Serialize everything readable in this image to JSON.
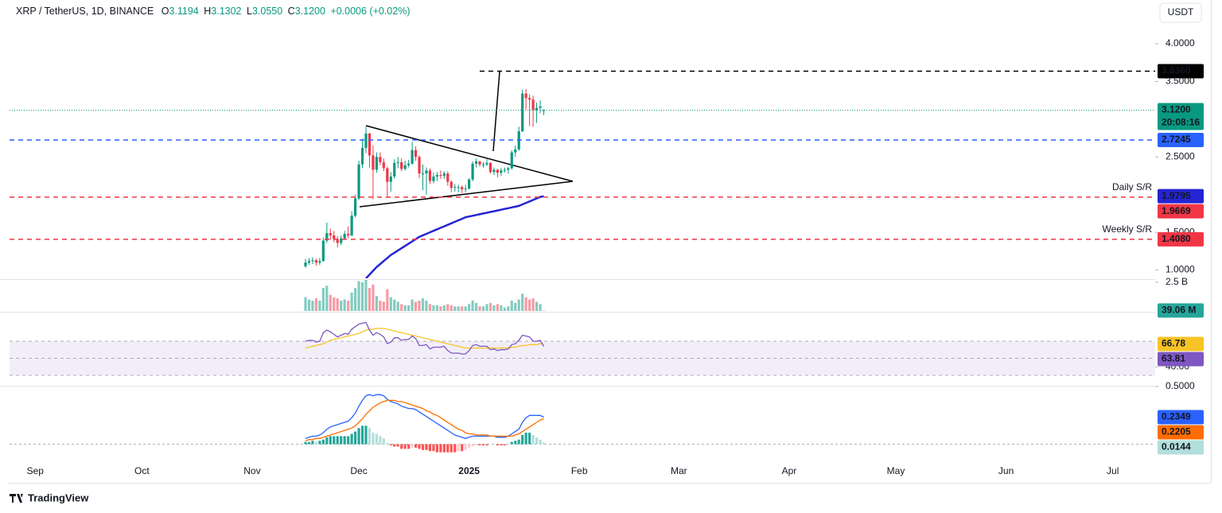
{
  "header": {
    "symbol": "XRP / TetherUS, 1D, BINANCE",
    "ohlc": [
      {
        "label": "O",
        "value": "3.1194"
      },
      {
        "label": "H",
        "value": "3.1302"
      },
      {
        "label": "L",
        "value": "3.0550"
      },
      {
        "label": "C",
        "value": "3.1200"
      }
    ],
    "change": "+0.0006 (+0.02%)"
  },
  "chart_data": [
    {
      "type": "candlestick",
      "currency": "USDT",
      "up_color": "#089981",
      "down_color": "#f23645",
      "months": [
        "Sep",
        "Oct",
        "Nov",
        "Dec",
        "2025",
        "Feb",
        "Mar",
        "Apr",
        "May",
        "Jun",
        "Jul"
      ],
      "ylim": [
        0.89,
        4.58
      ],
      "yticks": [
        {
          "value": 1,
          "label": "1.0000"
        },
        {
          "value": 1.5,
          "label": "1.5000"
        },
        {
          "value": 2.5,
          "label": "2.5000"
        },
        {
          "value": 3.5,
          "label": "3.5000"
        },
        {
          "value": 4,
          "label": "4.0000"
        }
      ],
      "ohlc": [
        [
          1.05,
          1.15,
          1.03,
          1.1
        ],
        [
          1.1,
          1.16,
          1.07,
          1.12
        ],
        [
          1.12,
          1.17,
          1.08,
          1.13
        ],
        [
          1.13,
          1.15,
          1.06,
          1.1
        ],
        [
          1.1,
          1.16,
          1.07,
          1.12
        ],
        [
          1.12,
          1.43,
          1.11,
          1.39
        ],
        [
          1.39,
          1.63,
          1.36,
          1.49
        ],
        [
          1.49,
          1.55,
          1.4,
          1.46
        ],
        [
          1.46,
          1.52,
          1.37,
          1.41
        ],
        [
          1.41,
          1.45,
          1.3,
          1.36
        ],
        [
          1.36,
          1.46,
          1.33,
          1.42
        ],
        [
          1.42,
          1.52,
          1.4,
          1.48
        ],
        [
          1.48,
          1.58,
          1.42,
          1.46
        ],
        [
          1.46,
          1.78,
          1.45,
          1.72
        ],
        [
          1.72,
          2.0,
          1.7,
          1.95
        ],
        [
          1.95,
          2.45,
          1.93,
          2.4
        ],
        [
          2.4,
          2.74,
          2.35,
          2.62
        ],
        [
          2.62,
          2.9,
          2.55,
          2.81
        ],
        [
          2.81,
          2.82,
          2.36,
          2.52
        ],
        [
          2.52,
          2.65,
          1.94,
          2.33
        ],
        [
          2.33,
          2.56,
          2.29,
          2.5
        ],
        [
          2.5,
          2.56,
          2.39,
          2.43
        ],
        [
          2.43,
          2.48,
          2.31,
          2.35
        ],
        [
          2.35,
          2.37,
          1.96,
          2.17
        ],
        [
          2.17,
          2.3,
          2.04,
          2.24
        ],
        [
          2.24,
          2.47,
          2.21,
          2.42
        ],
        [
          2.42,
          2.5,
          2.35,
          2.43
        ],
        [
          2.43,
          2.48,
          2.31,
          2.34
        ],
        [
          2.34,
          2.45,
          2.32,
          2.39
        ],
        [
          2.39,
          2.46,
          2.36,
          2.41
        ],
        [
          2.41,
          2.7,
          2.4,
          2.59
        ],
        [
          2.59,
          2.64,
          2.45,
          2.5
        ],
        [
          2.5,
          2.52,
          2.22,
          2.28
        ],
        [
          2.28,
          2.4,
          2.06,
          2.28
        ],
        [
          2.28,
          2.36,
          2.0,
          2.32
        ],
        [
          2.32,
          2.35,
          2.14,
          2.18
        ],
        [
          2.18,
          2.29,
          2.15,
          2.24
        ],
        [
          2.24,
          2.3,
          2.18,
          2.26
        ],
        [
          2.26,
          2.32,
          2.21,
          2.25
        ],
        [
          2.25,
          2.31,
          2.21,
          2.28
        ],
        [
          2.28,
          2.31,
          2.12,
          2.17
        ],
        [
          2.17,
          2.19,
          2.03,
          2.09
        ],
        [
          2.09,
          2.14,
          2.04,
          2.1
        ],
        [
          2.1,
          2.13,
          2.03,
          2.1
        ],
        [
          2.1,
          2.12,
          2.02,
          2.07
        ],
        [
          2.07,
          2.13,
          2.03,
          2.08
        ],
        [
          2.08,
          2.22,
          2.07,
          2.2
        ],
        [
          2.2,
          2.44,
          2.18,
          2.41
        ],
        [
          2.41,
          2.48,
          2.36,
          2.44
        ],
        [
          2.44,
          2.45,
          2.37,
          2.4
        ],
        [
          2.4,
          2.43,
          2.36,
          2.4
        ],
        [
          2.4,
          2.47,
          2.38,
          2.42
        ],
        [
          2.42,
          2.43,
          2.28,
          2.3
        ],
        [
          2.3,
          2.36,
          2.26,
          2.33
        ],
        [
          2.33,
          2.34,
          2.23,
          2.29
        ],
        [
          2.29,
          2.35,
          2.25,
          2.32
        ],
        [
          2.32,
          2.36,
          2.29,
          2.33
        ],
        [
          2.33,
          2.37,
          2.28,
          2.35
        ],
        [
          2.35,
          2.59,
          2.33,
          2.56
        ],
        [
          2.56,
          2.65,
          2.5,
          2.6
        ],
        [
          2.6,
          2.9,
          2.58,
          2.84
        ],
        [
          2.84,
          3.39,
          2.83,
          3.34
        ],
        [
          3.34,
          3.4,
          3.13,
          3.28
        ],
        [
          3.28,
          3.33,
          2.91,
          3.26
        ],
        [
          3.26,
          3.31,
          2.9,
          3.12
        ],
        [
          3.12,
          3.22,
          2.95,
          3.15
        ],
        [
          3.15,
          3.25,
          3.08,
          3.17
        ],
        [
          3.1194,
          3.1302,
          3.055,
          3.12
        ]
      ],
      "ma": {
        "color": "#2424d4",
        "values": [
          null,
          null,
          null,
          null,
          null,
          null,
          null,
          null,
          null,
          null,
          null,
          null,
          null,
          null,
          null,
          null,
          null,
          0.89,
          0.94,
          0.99,
          1.04,
          1.08,
          1.12,
          1.16,
          1.2,
          1.23,
          1.26,
          1.29,
          1.32,
          1.35,
          1.38,
          1.41,
          1.44,
          1.46,
          1.48,
          1.5,
          1.52,
          1.54,
          1.56,
          1.58,
          1.6,
          1.62,
          1.64,
          1.66,
          1.68,
          1.7,
          1.71,
          1.72,
          1.73,
          1.74,
          1.75,
          1.76,
          1.77,
          1.78,
          1.79,
          1.8,
          1.81,
          1.82,
          1.83,
          1.84,
          1.85,
          1.87,
          1.89,
          1.91,
          1.93,
          1.95,
          1.97,
          1.9795
        ]
      },
      "last_price": {
        "value": 3.12,
        "label": "3.1200",
        "countdown": "20:08:16",
        "color": "#089981"
      },
      "levels": [
        {
          "value": 3.636,
          "label": "3.6360",
          "color": "#000000"
        },
        {
          "value": 2.7245,
          "label": "2.7245",
          "color": "#2962ff"
        },
        {
          "value": 1.9669,
          "label": "1.9669",
          "color": "#f23645",
          "name": "Daily S/R"
        },
        {
          "value": 1.408,
          "label": "1.4080",
          "color": "#f23645",
          "name": "Weekly S/R"
        }
      ]
    },
    {
      "type": "bar",
      "ylim": [
        0,
        2.7
      ],
      "yticks": [
        {
          "value": 2.5,
          "label": "2.5 B"
        }
      ],
      "last_label": "39.06 M",
      "color": "#26a69a",
      "values": [
        1.2,
        1.0,
        0.9,
        1.1,
        0.9,
        2.0,
        2.2,
        1.4,
        1.2,
        1.1,
        0.9,
        1.0,
        0.9,
        1.6,
        2.0,
        2.6,
        2.5,
        2.8,
        2.0,
        2.3,
        1.3,
        0.9,
        0.8,
        1.9,
        1.2,
        1.0,
        0.8,
        0.6,
        0.5,
        0.5,
        1.0,
        0.8,
        0.9,
        1.1,
        0.9,
        0.6,
        0.5,
        0.5,
        0.4,
        0.5,
        0.6,
        0.5,
        0.4,
        0.4,
        0.4,
        0.4,
        0.6,
        0.9,
        0.7,
        0.4,
        0.4,
        0.6,
        0.7,
        0.5,
        0.6,
        0.5,
        0.3,
        0.4,
        0.9,
        0.7,
        1.0,
        1.5,
        1.2,
        1.0,
        1.1,
        0.8,
        0.6,
        0.03906
      ]
    },
    {
      "type": "line",
      "ylim": [
        18.8,
        103.5
      ],
      "yticks": [
        {
          "value": 40,
          "label": "40.00"
        }
      ],
      "band": [
        30,
        70
      ],
      "midline": 50,
      "series": [
        {
          "color": "#7e57c2",
          "values": [
            70,
            71,
            71,
            69,
            70,
            80,
            83,
            81,
            78,
            75,
            77,
            79,
            78,
            84,
            87,
            90,
            91,
            92,
            83,
            77,
            80,
            78,
            75,
            67,
            69,
            74,
            74,
            71,
            72,
            72,
            76,
            73,
            65,
            65,
            66,
            61,
            63,
            63,
            63,
            64,
            59,
            56,
            56,
            56,
            55,
            55,
            59,
            65,
            66,
            64,
            64,
            64,
            60,
            61,
            59,
            60,
            60,
            61,
            66,
            67,
            71,
            77,
            76,
            75,
            70,
            70,
            71,
            63.81
          ]
        },
        {
          "color": "#f7c325",
          "values": [
            62,
            63,
            64,
            65,
            66,
            67,
            69,
            71,
            72,
            73,
            74,
            75,
            76,
            77,
            78,
            79,
            81,
            83,
            84,
            84,
            85,
            85,
            85,
            84,
            83,
            82,
            81,
            80,
            79,
            78,
            77,
            76,
            75,
            74,
            73,
            72,
            71,
            70,
            69,
            68,
            67,
            66,
            65,
            64,
            63,
            62,
            62,
            62,
            62,
            62,
            62,
            62,
            62,
            62,
            62,
            62,
            62,
            62,
            63,
            63,
            64,
            65,
            65,
            66,
            66,
            66,
            67,
            66.78
          ]
        }
      ]
    },
    {
      "type": "macd",
      "ylim": [
        -0.148,
        0.5
      ],
      "yticks": [
        {
          "value": 0.5,
          "label": "0.5000"
        }
      ],
      "macd": {
        "color": "#2962ff",
        "values": [
          0.05,
          0.06,
          0.07,
          0.07,
          0.08,
          0.1,
          0.13,
          0.15,
          0.16,
          0.17,
          0.18,
          0.19,
          0.2,
          0.23,
          0.27,
          0.33,
          0.38,
          0.42,
          0.43,
          0.42,
          0.43,
          0.43,
          0.42,
          0.39,
          0.37,
          0.36,
          0.35,
          0.33,
          0.32,
          0.31,
          0.31,
          0.3,
          0.28,
          0.26,
          0.24,
          0.22,
          0.2,
          0.18,
          0.16,
          0.14,
          0.12,
          0.1,
          0.08,
          0.07,
          0.06,
          0.05,
          0.06,
          0.07,
          0.07,
          0.07,
          0.07,
          0.07,
          0.07,
          0.07,
          0.06,
          0.06,
          0.06,
          0.07,
          0.09,
          0.11,
          0.13,
          0.19,
          0.23,
          0.25,
          0.25,
          0.25,
          0.25,
          0.2349
        ]
      },
      "signal": {
        "color": "#ff6d00",
        "values": [
          0.03,
          0.04,
          0.04,
          0.05,
          0.05,
          0.06,
          0.07,
          0.08,
          0.09,
          0.1,
          0.11,
          0.12,
          0.13,
          0.14,
          0.16,
          0.19,
          0.22,
          0.26,
          0.29,
          0.32,
          0.34,
          0.36,
          0.37,
          0.38,
          0.38,
          0.38,
          0.37,
          0.37,
          0.36,
          0.35,
          0.34,
          0.33,
          0.32,
          0.31,
          0.29,
          0.28,
          0.26,
          0.25,
          0.23,
          0.21,
          0.19,
          0.17,
          0.15,
          0.13,
          0.12,
          0.1,
          0.09,
          0.09,
          0.08,
          0.08,
          0.08,
          0.08,
          0.07,
          0.07,
          0.07,
          0.07,
          0.07,
          0.07,
          0.07,
          0.08,
          0.09,
          0.11,
          0.13,
          0.15,
          0.17,
          0.19,
          0.21,
          0.2205
        ]
      },
      "histogram": {
        "up_color": "#26a69a",
        "up_fade": "#b2dfdb",
        "down_color": "#ff5252",
        "down_fade": "#ffcdd2",
        "values": [
          0.02,
          0.02,
          0.03,
          0.02,
          0.03,
          0.04,
          0.06,
          0.07,
          0.07,
          0.07,
          0.07,
          0.07,
          0.07,
          0.09,
          0.11,
          0.14,
          0.16,
          0.16,
          0.14,
          0.1,
          0.09,
          0.07,
          0.05,
          0.01,
          -0.01,
          -0.02,
          -0.02,
          -0.04,
          -0.04,
          -0.04,
          -0.03,
          -0.03,
          -0.04,
          -0.05,
          -0.05,
          -0.06,
          -0.06,
          -0.07,
          -0.07,
          -0.07,
          -0.07,
          -0.07,
          -0.07,
          -0.06,
          -0.06,
          -0.05,
          -0.03,
          -0.02,
          -0.01,
          -0.01,
          -0.01,
          -0.01,
          0,
          0,
          -0.01,
          -0.01,
          -0.01,
          0,
          0.02,
          0.03,
          0.04,
          0.08,
          0.1,
          0.1,
          0.08,
          0.06,
          0.04,
          0.0144
        ]
      }
    }
  ],
  "footer": {
    "brand": "TradingView"
  }
}
